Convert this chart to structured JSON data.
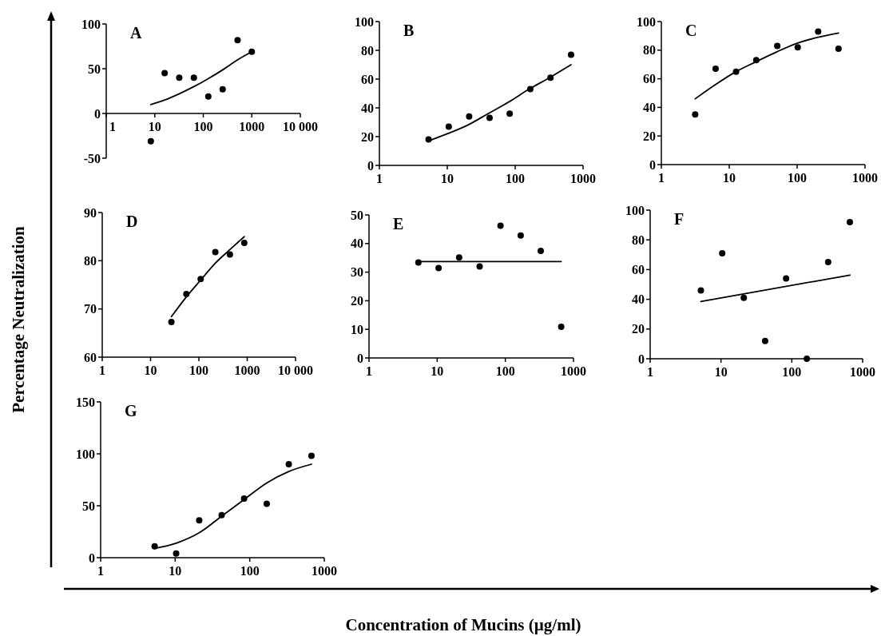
{
  "chart_data": [
    {
      "type": "scatter",
      "title": "A",
      "ylabel": "Percentage Neutralization",
      "log": "x",
      "xlim": [
        1,
        10000
      ],
      "xticks": [
        1,
        10,
        100,
        1000,
        {
          "value": 10000,
          "label": "10 000"
        }
      ],
      "ylim": [
        -50,
        100
      ],
      "yticks": [
        -50,
        0,
        50,
        100
      ],
      "series": [
        {
          "marker": "circle",
          "color": "#000000",
          "x": [
            8.3,
            16,
            32,
            64,
            127,
            251,
            509,
            1000
          ],
          "values": [
            -31,
            45,
            40,
            40,
            19,
            27,
            82,
            69
          ]
        },
        {
          "type": "line",
          "color": "#000000",
          "x": [
            8.3,
            16,
            32,
            64,
            128,
            256,
            512,
            1000
          ],
          "values": [
            10,
            15,
            22,
            30,
            39,
            49,
            60,
            69
          ]
        }
      ]
    },
    {
      "type": "scatter",
      "title": "B",
      "log": "x",
      "xlim": [
        1,
        1000
      ],
      "xticks": [
        1,
        10,
        100,
        1000
      ],
      "ylim": [
        0,
        100
      ],
      "yticks": [
        0,
        20,
        40,
        60,
        80,
        100
      ],
      "series": [
        {
          "marker": "circle",
          "color": "#000000",
          "x": [
            5.3,
            10.5,
            21,
            42,
            83,
            167,
            331,
            665
          ],
          "values": [
            18,
            27,
            34,
            33,
            36,
            53,
            61,
            77
          ]
        },
        {
          "type": "line",
          "color": "#000000",
          "x": [
            5.3,
            10,
            20,
            40,
            80,
            160,
            320,
            665
          ],
          "values": [
            17,
            22,
            28,
            36,
            44,
            53,
            61,
            70
          ]
        }
      ]
    },
    {
      "type": "scatter",
      "title": "C",
      "log": "x",
      "xlim": [
        1,
        1000
      ],
      "xticks": [
        1,
        10,
        100,
        1000
      ],
      "ylim": [
        0,
        100
      ],
      "yticks": [
        0,
        20,
        40,
        60,
        80,
        100
      ],
      "series": [
        {
          "marker": "circle",
          "color": "#000000",
          "x": [
            3.15,
            6.3,
            12.6,
            25,
            51,
            102,
            204,
            407
          ],
          "values": [
            35,
            67,
            65,
            73,
            83,
            82,
            93,
            81
          ]
        },
        {
          "type": "line",
          "color": "#000000",
          "x": [
            3.15,
            6.3,
            12.6,
            25,
            51,
            102,
            204,
            407
          ],
          "values": [
            46,
            56,
            65,
            72,
            79,
            85,
            89,
            92
          ]
        }
      ]
    },
    {
      "type": "scatter",
      "title": "D",
      "log": "x",
      "xlim": [
        1,
        10000
      ],
      "xticks": [
        1,
        10,
        100,
        1000,
        {
          "value": 10000,
          "label": "10 000"
        }
      ],
      "ylim": [
        60,
        90
      ],
      "yticks": [
        60,
        70,
        80,
        90
      ],
      "series": [
        {
          "marker": "circle",
          "color": "#000000",
          "x": [
            27,
            55,
            109,
            219,
            438,
            870
          ],
          "values": [
            67.3,
            73.1,
            76.2,
            81.8,
            81.3,
            83.7
          ]
        },
        {
          "type": "line",
          "color": "#000000",
          "x": [
            27,
            55,
            109,
            219,
            438,
            870
          ],
          "values": [
            68.4,
            72.5,
            76,
            79.5,
            82.3,
            85
          ]
        }
      ]
    },
    {
      "type": "scatter",
      "title": "E",
      "log": "x",
      "xlim": [
        1,
        1000
      ],
      "xticks": [
        1,
        10,
        100,
        1000
      ],
      "ylim": [
        0,
        50
      ],
      "yticks": [
        0,
        10,
        20,
        30,
        40,
        50
      ],
      "series": [
        {
          "marker": "circle",
          "color": "#000000",
          "x": [
            5.3,
            10.5,
            21,
            42,
            85,
            168,
            331,
            660
          ],
          "values": [
            33.4,
            31.4,
            35.1,
            32,
            46.2,
            42.8,
            37.4,
            10.9
          ]
        },
        {
          "type": "line",
          "color": "#000000",
          "x": [
            5.3,
            660
          ],
          "values": [
            33.7,
            33.7
          ]
        }
      ]
    },
    {
      "type": "scatter",
      "title": "F",
      "log": "x",
      "xlim": [
        1,
        1000
      ],
      "xticks": [
        1,
        10,
        100,
        1000
      ],
      "ylim": [
        0,
        100
      ],
      "yticks": [
        0,
        20,
        40,
        60,
        80,
        100
      ],
      "series": [
        {
          "marker": "circle",
          "color": "#000000",
          "x": [
            5.2,
            10.4,
            21,
            42,
            83,
            163,
            326,
            660
          ],
          "values": [
            46,
            71,
            41,
            12,
            54,
            0,
            65,
            92
          ]
        },
        {
          "type": "line",
          "color": "#000000",
          "x": [
            5.2,
            660
          ],
          "values": [
            38.5,
            56.3
          ]
        }
      ]
    },
    {
      "type": "scatter",
      "title": "G",
      "xlabel": "Concentration of Mucins (µg/ml)",
      "log": "x",
      "xlim": [
        1,
        1000
      ],
      "xticks": [
        1,
        10,
        100,
        1000
      ],
      "ylim": [
        0,
        150
      ],
      "yticks": [
        0,
        50,
        100,
        150
      ],
      "series": [
        {
          "marker": "circle",
          "color": "#000000",
          "x": [
            5.3,
            10.3,
            21,
            42,
            84,
            169,
            334,
            673
          ],
          "values": [
            11,
            4,
            36,
            41,
            57,
            52,
            90,
            98
          ]
        },
        {
          "type": "line",
          "color": "#000000",
          "x": [
            5.3,
            10.3,
            21,
            42,
            84,
            169,
            334,
            673
          ],
          "values": [
            9,
            14,
            24,
            40,
            56,
            72,
            83,
            90
          ]
        }
      ]
    }
  ]
}
